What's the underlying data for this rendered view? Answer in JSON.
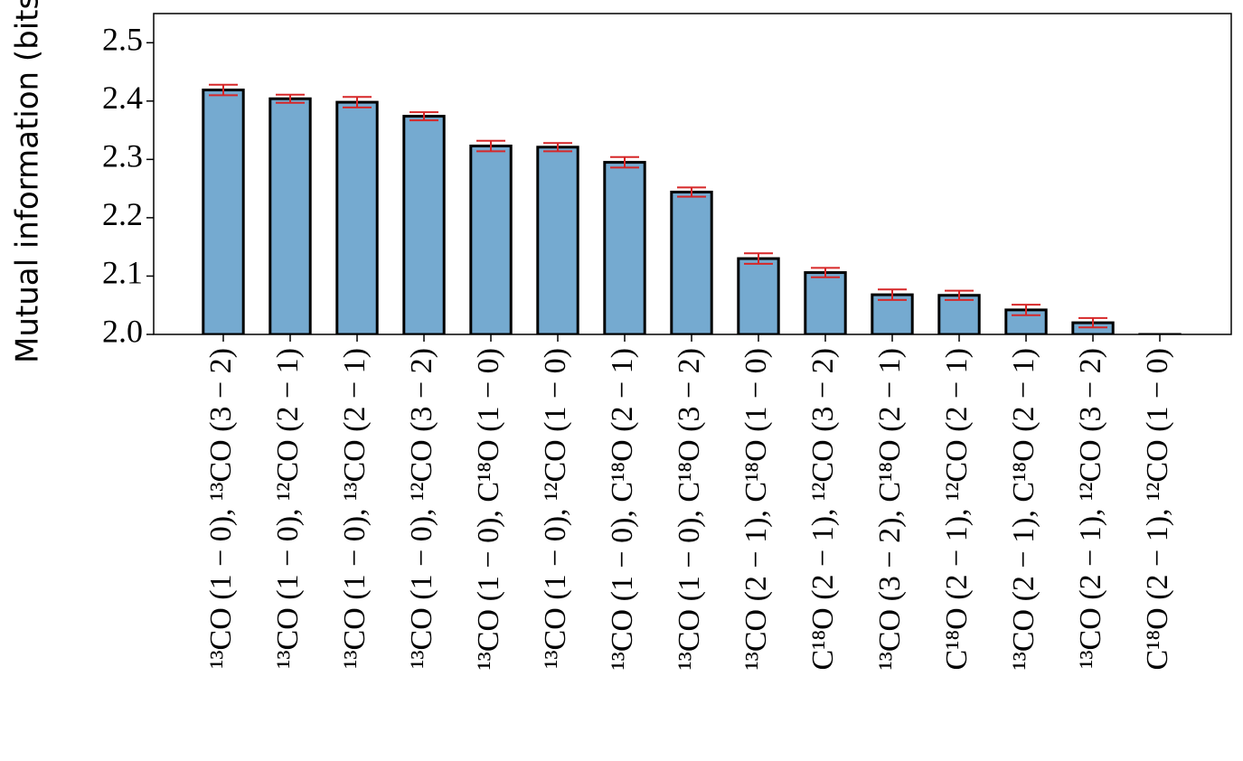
{
  "chart_data": {
    "type": "bar",
    "ylabel": "Mutual information (bits)",
    "categories": [
      "¹³CO (1 − 0), ¹³CO (3 − 2)",
      "¹³CO (1 − 0), ¹²CO (2 − 1)",
      "¹³CO (1 − 0), ¹³CO (2 − 1)",
      "¹³CO (1 − 0), ¹²CO (3 − 2)",
      "¹³CO (1 − 0), C¹⁸O (1 − 0)",
      "¹³CO (1 − 0), ¹²CO (1 − 0)",
      "¹³CO (1 − 0), C¹⁸O (2 − 1)",
      "¹³CO (1 − 0), C¹⁸O (3 − 2)",
      "¹³CO (2 − 1), C¹⁸O (1 − 0)",
      "C¹⁸O (2 − 1), ¹²CO (3 − 2)",
      "¹³CO (3 − 2), C¹⁸O (2 − 1)",
      "C¹⁸O (2 − 1), ¹²CO (2 − 1)",
      "¹³CO (2 − 1), C¹⁸O (2 − 1)",
      "¹³CO (2 − 1), ¹²CO (3 − 2)",
      "C¹⁸O (2 − 1), ¹²CO (1 − 0)"
    ],
    "values": [
      2.419,
      2.404,
      2.398,
      2.374,
      2.323,
      2.321,
      2.295,
      2.244,
      2.13,
      2.106,
      2.068,
      2.067,
      2.042,
      2.02,
      1.99
    ],
    "errors": [
      0.009,
      0.007,
      0.009,
      0.007,
      0.009,
      0.007,
      0.009,
      0.008,
      0.009,
      0.008,
      0.009,
      0.008,
      0.009,
      0.008,
      0.008
    ],
    "color": "#75aad0",
    "edge_color": "#000000",
    "error_color": "#d62728",
    "ylim": [
      2.0,
      2.55
    ],
    "yticks": [
      {
        "value": 2.0,
        "label": "2.0"
      },
      2.1,
      2.2,
      2.3,
      2.4,
      2.5
    ]
  }
}
